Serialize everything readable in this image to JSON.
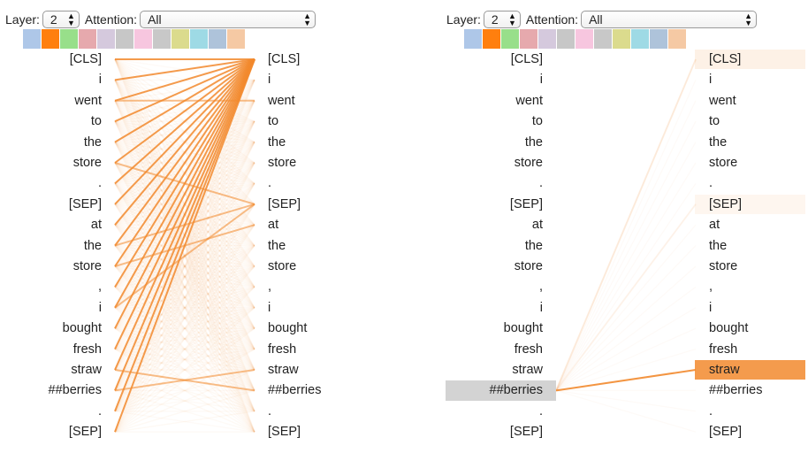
{
  "controls": {
    "layer_label": "Layer:",
    "layer_value": "2",
    "attention_label": "Attention:",
    "attention_value": "All"
  },
  "head_colors": [
    "#aec7e8",
    "#ff7f0e",
    "#98df8a",
    "#e6a9ad",
    "#d5c9dd",
    "#c7c7c7",
    "#f7c6df",
    "#c8c8c8",
    "#dbdb8d",
    "#9edae5",
    "#aec3da",
    "#f5c9a4"
  ],
  "selected_head_index": 1,
  "tokens": [
    "[CLS]",
    "i",
    "went",
    "to",
    "the",
    "store",
    ".",
    "[SEP]",
    "at",
    "the",
    "store",
    ",",
    "i",
    "bought",
    "fresh",
    "straw",
    "##berries",
    ".",
    "[SEP]"
  ],
  "accent_color": "#f28a2e",
  "left_panel": {
    "strong_links": [
      [
        0,
        0
      ],
      [
        1,
        0
      ],
      [
        2,
        0
      ],
      [
        3,
        0
      ],
      [
        4,
        0
      ],
      [
        5,
        0
      ],
      [
        6,
        0
      ],
      [
        7,
        0
      ],
      [
        8,
        0
      ],
      [
        9,
        0
      ],
      [
        10,
        0
      ],
      [
        11,
        0
      ],
      [
        12,
        0
      ],
      [
        13,
        0
      ],
      [
        14,
        0
      ],
      [
        15,
        0
      ],
      [
        16,
        0
      ],
      [
        17,
        0
      ],
      [
        18,
        0
      ],
      [
        15,
        16
      ],
      [
        16,
        15
      ],
      [
        2,
        2
      ],
      [
        5,
        7
      ],
      [
        9,
        7
      ],
      [
        10,
        8
      ],
      [
        12,
        7
      ]
    ]
  },
  "right_panel": {
    "selected_token_index": 16,
    "focus_links": [
      [
        16,
        15,
        0.9
      ],
      [
        16,
        0,
        0.15
      ],
      [
        16,
        7,
        0.08
      ]
    ],
    "highlights": [
      [
        0,
        0.12
      ],
      [
        7,
        0.08
      ],
      [
        15,
        0.85
      ]
    ]
  }
}
